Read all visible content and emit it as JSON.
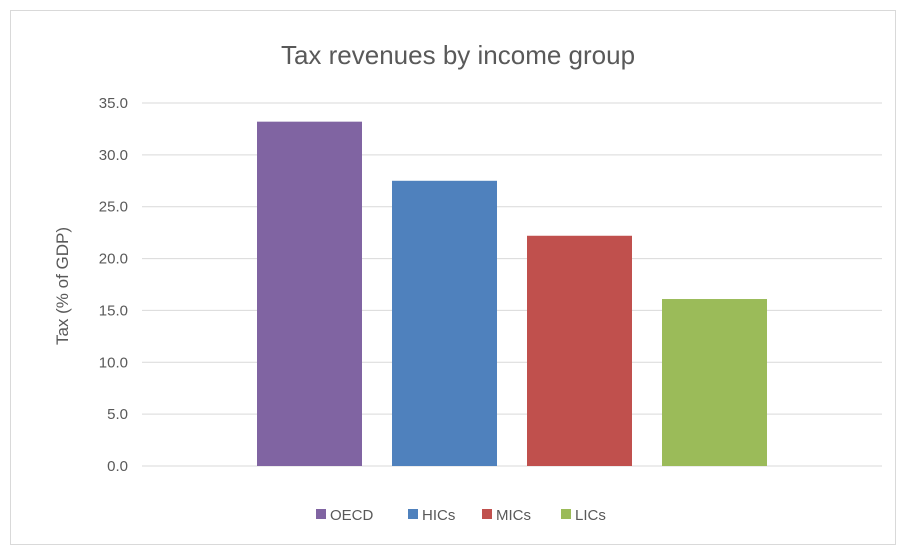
{
  "chart_data": {
    "type": "bar",
    "title": "Tax revenues by income group",
    "ylabel": "Tax (% of GDP)",
    "xlabel": "",
    "ylim": [
      0,
      35
    ],
    "yticks": [
      "0.0",
      "5.0",
      "10.0",
      "15.0",
      "20.0",
      "25.0",
      "30.0",
      "35.0"
    ],
    "grid": true,
    "legend_position": "bottom",
    "series": [
      {
        "name": "OECD",
        "value": 33.2,
        "color": "#8064a2"
      },
      {
        "name": "HICs",
        "value": 27.5,
        "color": "#4f81bd"
      },
      {
        "name": "MICs",
        "value": 22.2,
        "color": "#c0504d"
      },
      {
        "name": "LICs",
        "value": 16.1,
        "color": "#9bbb59"
      }
    ]
  }
}
